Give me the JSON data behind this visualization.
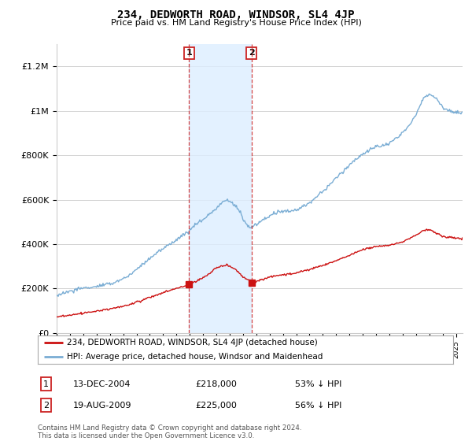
{
  "title": "234, DEDWORTH ROAD, WINDSOR, SL4 4JP",
  "subtitle": "Price paid vs. HM Land Registry's House Price Index (HPI)",
  "ylabel_ticks": [
    "£0",
    "£200K",
    "£400K",
    "£600K",
    "£800K",
    "£1M",
    "£1.2M"
  ],
  "ytick_values": [
    0,
    200000,
    400000,
    600000,
    800000,
    1000000,
    1200000
  ],
  "ylim": [
    0,
    1300000
  ],
  "hpi_color": "#7aadd4",
  "price_color": "#cc1111",
  "sale1_date": "13-DEC-2004",
  "sale1_price": 218000,
  "sale1_label": "53% ↓ HPI",
  "sale2_date": "19-AUG-2009",
  "sale2_price": 225000,
  "sale2_label": "56% ↓ HPI",
  "sale1_x": 2004.95,
  "sale2_x": 2009.63,
  "footer": "Contains HM Land Registry data © Crown copyright and database right 2024.\nThis data is licensed under the Open Government Licence v3.0.",
  "legend_label1": "234, DEDWORTH ROAD, WINDSOR, SL4 4JP (detached house)",
  "legend_label2": "HPI: Average price, detached house, Windsor and Maidenhead",
  "background_color": "#ffffff",
  "grid_color": "#cccccc",
  "shade_color": "#ddeeff"
}
